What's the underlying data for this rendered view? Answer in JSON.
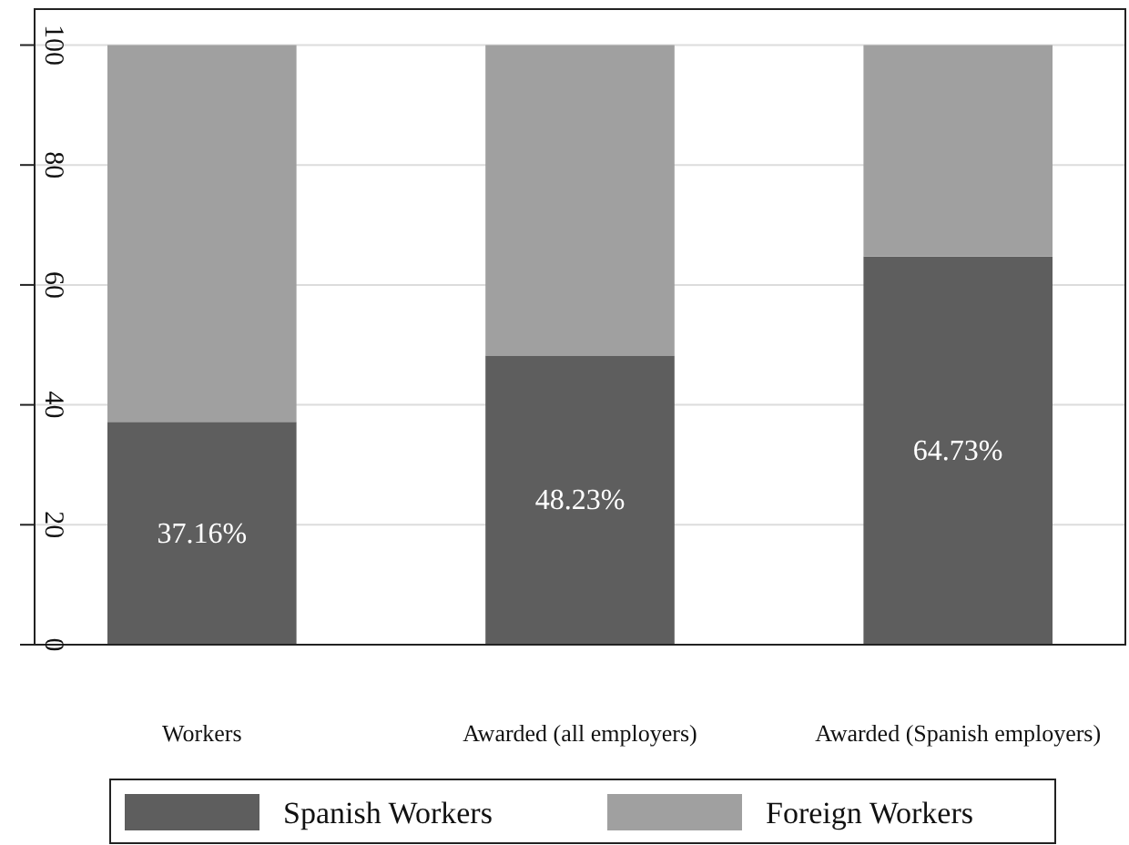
{
  "chart_data": {
    "type": "bar",
    "stacked": true,
    "categories": [
      "Workers",
      "Awarded (all employers)",
      "Awarded (Spanish employers)"
    ],
    "series": [
      {
        "name": "Spanish Workers",
        "color": "#5e5e5e",
        "values": [
          37.16,
          48.23,
          64.73
        ],
        "value_labels": [
          "37.16%",
          "48.23%",
          "64.73%"
        ]
      },
      {
        "name": "Foreign Workers",
        "color": "#a0a0a0",
        "values": [
          62.84,
          51.77,
          35.27
        ]
      }
    ],
    "ylim": [
      0,
      106
    ],
    "yticks": [
      0,
      20,
      40,
      60,
      80,
      100
    ],
    "grid": "y",
    "legend": "bottom"
  }
}
